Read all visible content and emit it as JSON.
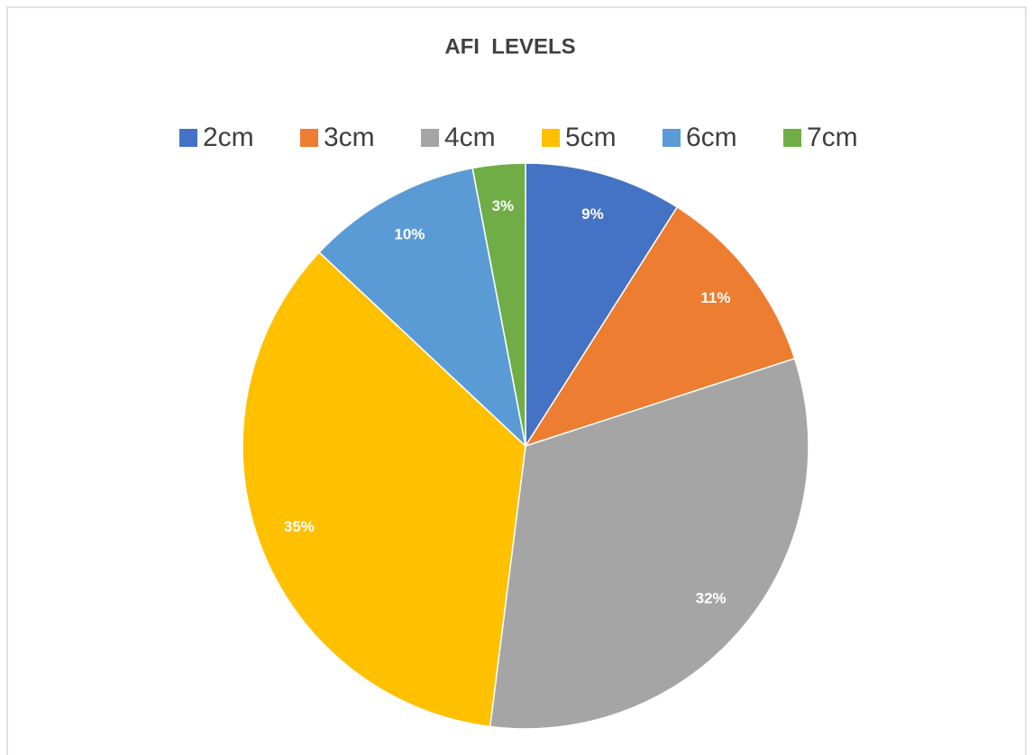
{
  "chart_data": {
    "type": "pie",
    "title": "AFI  LEVELS",
    "categories": [
      "2cm",
      "3cm",
      "4cm",
      "5cm",
      "6cm",
      "7cm"
    ],
    "values": [
      9,
      11,
      32,
      35,
      10,
      3
    ],
    "value_labels": [
      "9%",
      "11%",
      "32%",
      "35%",
      "10%",
      "3%"
    ],
    "colors": [
      "#4472c4",
      "#ed7d31",
      "#a5a5a5",
      "#ffc000",
      "#5b9bd5",
      "#70ad47"
    ],
    "legend": "top"
  }
}
